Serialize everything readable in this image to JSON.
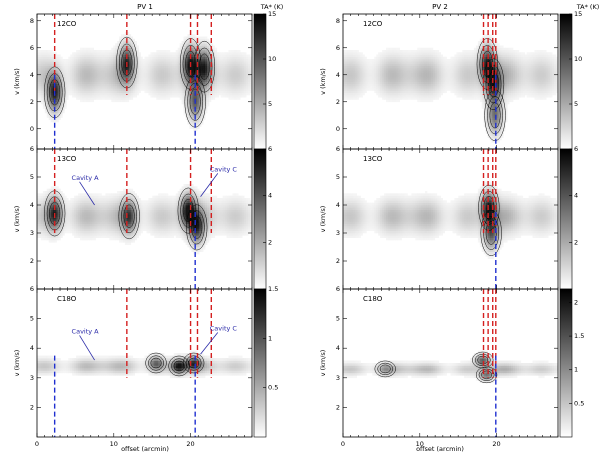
{
  "columns": [
    {
      "title": "PV 1"
    },
    {
      "title": "PV 2"
    }
  ],
  "colorbar_unit": "TA* (K)",
  "xlabel": "offset (arcmin)",
  "ylabel": "v (km/s)",
  "x_ticks": [
    "0",
    "10",
    "20"
  ],
  "cavity_labels": {
    "a": "Cavity A",
    "c": "Cavity C"
  },
  "chart_data": [
    {
      "type": "heatmap",
      "column": "PV 1",
      "tracer": "12CO",
      "xlim": [
        0,
        28
      ],
      "ylim": [
        -1.5,
        8.5
      ],
      "yticks": [
        0,
        2,
        4,
        6,
        8
      ],
      "colorbar": {
        "ticks": [
          "5",
          "10",
          "15"
        ],
        "range": [
          0,
          15
        ]
      },
      "emission_band": {
        "center": 4.0,
        "width": 1.4
      },
      "blobs": [
        {
          "x": 2.3,
          "y": 2.7,
          "amp": 14
        },
        {
          "x": 11.7,
          "y": 4.9,
          "amp": 12
        },
        {
          "x": 20.0,
          "y": 4.8,
          "amp": 13
        },
        {
          "x": 20.6,
          "y": 2.0,
          "amp": 10
        },
        {
          "x": 21.8,
          "y": 4.6,
          "amp": 11
        }
      ],
      "red_lines": [
        2.3,
        11.7,
        20.0,
        20.9,
        22.7
      ],
      "blue_lines": [
        2.3,
        20.6
      ],
      "cavities": []
    },
    {
      "type": "heatmap",
      "column": "PV 2",
      "tracer": "12CO",
      "xlim": [
        0,
        28
      ],
      "ylim": [
        -1.5,
        8.5
      ],
      "yticks": [
        0,
        2,
        4,
        6,
        8
      ],
      "colorbar": {
        "ticks": [
          "5",
          "10",
          "15"
        ],
        "range": [
          0,
          15
        ]
      },
      "emission_band": {
        "center": 4.0,
        "width": 1.4
      },
      "blobs": [
        {
          "x": 18.8,
          "y": 4.8,
          "amp": 13
        },
        {
          "x": 19.6,
          "y": 3.3,
          "amp": 12
        },
        {
          "x": 19.8,
          "y": 1.0,
          "amp": 9
        }
      ],
      "red_lines": [
        18.3,
        18.9,
        19.5,
        19.9
      ],
      "blue_lines": [
        19.9
      ],
      "cavities": []
    },
    {
      "type": "heatmap",
      "column": "PV 1",
      "tracer": "13CO",
      "xlim": [
        0,
        28
      ],
      "ylim": [
        1.0,
        6.0
      ],
      "yticks": [
        2,
        3,
        4,
        5,
        6
      ],
      "colorbar": {
        "ticks": [
          "2",
          "4",
          "6"
        ],
        "range": [
          0,
          6
        ]
      },
      "emission_band": {
        "center": 3.6,
        "width": 0.6
      },
      "blobs": [
        {
          "x": 2.3,
          "y": 3.7,
          "amp": 5
        },
        {
          "x": 12.0,
          "y": 3.6,
          "amp": 4
        },
        {
          "x": 19.7,
          "y": 3.8,
          "amp": 5.5
        },
        {
          "x": 20.8,
          "y": 3.2,
          "amp": 4.5
        }
      ],
      "red_lines": [
        2.3,
        11.7,
        20.0,
        22.7
      ],
      "blue_lines": [
        20.6
      ],
      "cavities": [
        {
          "key": "a",
          "label_x": 4.5,
          "label_y": 4.9,
          "arrow_x": 7.5,
          "arrow_y": 4.0
        },
        {
          "key": "c",
          "label_x": 22.5,
          "label_y": 5.2,
          "arrow_x": 21.3,
          "arrow_y": 4.3
        }
      ]
    },
    {
      "type": "heatmap",
      "column": "PV 2",
      "tracer": "13CO",
      "xlim": [
        0,
        28
      ],
      "ylim": [
        1.0,
        6.0
      ],
      "yticks": [
        2,
        3,
        4,
        5,
        6
      ],
      "colorbar": {
        "ticks": [
          "2",
          "4",
          "6"
        ],
        "range": [
          0,
          6
        ]
      },
      "emission_band": {
        "center": 3.6,
        "width": 0.6
      },
      "blobs": [
        {
          "x": 19.0,
          "y": 3.9,
          "amp": 5.5
        },
        {
          "x": 19.3,
          "y": 3.0,
          "amp": 4
        }
      ],
      "red_lines": [
        18.3,
        18.9,
        19.5,
        19.9
      ],
      "blue_lines": [
        19.9
      ],
      "cavities": []
    },
    {
      "type": "heatmap",
      "column": "PV 1",
      "tracer": "C18O",
      "xlim": [
        0,
        28
      ],
      "ylim": [
        1.0,
        6.0
      ],
      "yticks": [
        2,
        3,
        4,
        5,
        6
      ],
      "colorbar": {
        "ticks": [
          "0.5",
          "1",
          "1.5"
        ],
        "range": [
          0,
          1.5
        ]
      },
      "emission_band": {
        "center": 3.4,
        "width": 0.25
      },
      "blobs": [
        {
          "x": 15.5,
          "y": 3.5,
          "amp": 0.8
        },
        {
          "x": 18.5,
          "y": 3.4,
          "amp": 1.4
        },
        {
          "x": 20.4,
          "y": 3.5,
          "amp": 1.0
        }
      ],
      "red_lines": [
        11.7,
        20.0,
        20.9,
        22.7
      ],
      "blue_lines": [
        2.3,
        20.6
      ],
      "cavities": [
        {
          "key": "a",
          "label_x": 4.5,
          "label_y": 4.5,
          "arrow_x": 7.5,
          "arrow_y": 3.6
        },
        {
          "key": "c",
          "label_x": 22.5,
          "label_y": 4.6,
          "arrow_x": 21.3,
          "arrow_y": 3.8
        }
      ]
    },
    {
      "type": "heatmap",
      "column": "PV 2",
      "tracer": "C18O",
      "xlim": [
        0,
        28
      ],
      "ylim": [
        1.0,
        6.0
      ],
      "yticks": [
        2,
        3,
        4,
        5,
        6
      ],
      "colorbar": {
        "ticks": [
          "0.5",
          "1",
          "1.5",
          "2"
        ],
        "range": [
          0,
          2.2
        ]
      },
      "emission_band": {
        "center": 3.3,
        "width": 0.2
      },
      "blobs": [
        {
          "x": 18.2,
          "y": 3.6,
          "amp": 1.5
        },
        {
          "x": 18.7,
          "y": 3.1,
          "amp": 1.2
        },
        {
          "x": 5.5,
          "y": 3.3,
          "amp": 0.6
        }
      ],
      "red_lines": [
        18.3,
        18.9,
        19.5,
        19.9
      ],
      "blue_lines": [
        19.9
      ],
      "cavities": []
    }
  ]
}
